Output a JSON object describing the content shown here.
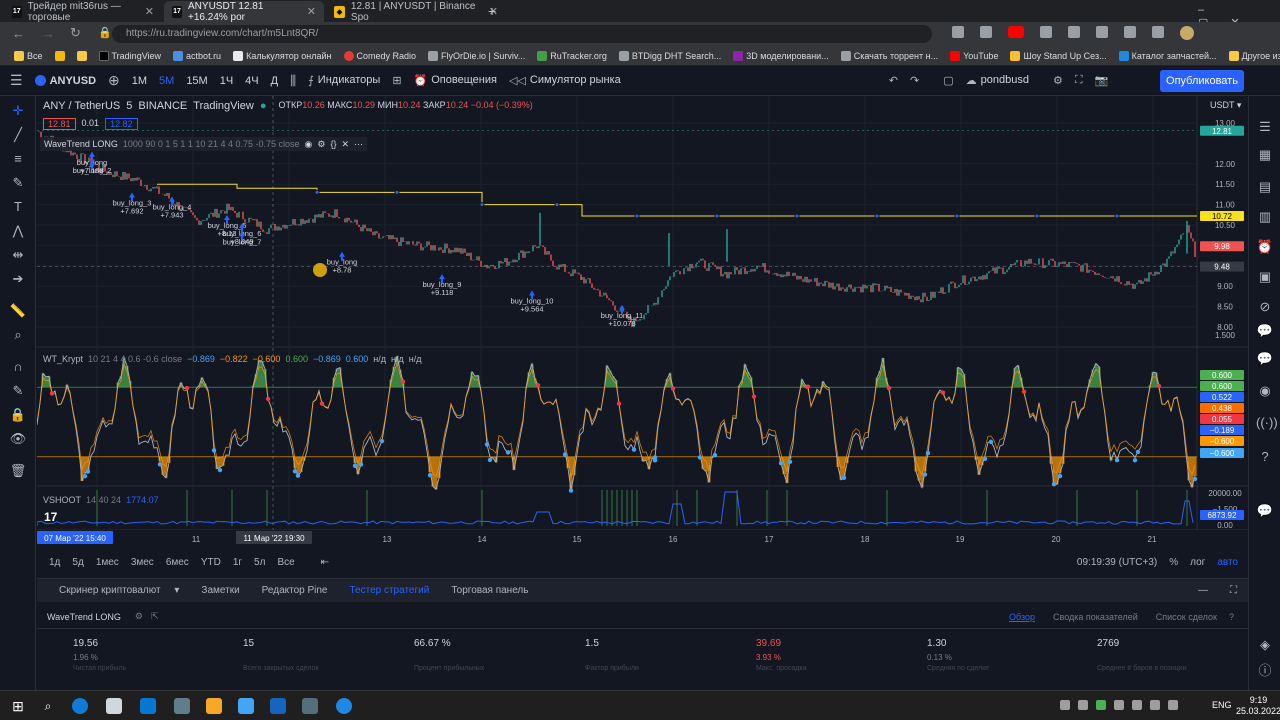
{
  "browser": {
    "tabs": [
      {
        "label": "Трейдер mit36rus — торговые"
      },
      {
        "label": "ANYUSDT 12.81 +16.24% por"
      },
      {
        "label": "12.81 | ANYUSDT | Binance Spo"
      }
    ],
    "url": "https://ru.tradingview.com/chart/m5Lnt8QR/",
    "bookmarks": [
      "Все",
      "TradingView",
      "actbot.ru",
      "Калькулятор онлайн",
      "Comedy Radio",
      "FlyOrDie.io | Surviv...",
      "RuTracker.org",
      "BTDigg DHT Search...",
      "3D моделировани...",
      "Скачать торрент н...",
      "YouTube",
      "Шоу Stand Up Сез...",
      "Каталог запчастей...",
      "Другое избранное"
    ]
  },
  "toolbar": {
    "symbol": "ANYUSD",
    "intervals": [
      "1М",
      "5М",
      "15М",
      "1Ч",
      "4Ч",
      "Д"
    ],
    "indicators": "Индикаторы",
    "alerts": "Оповещения",
    "replay": "Симулятор рынка",
    "layout": "pondbusd",
    "publish": "Опубликовать"
  },
  "legend": {
    "pair": "ANY / TetherUS",
    "interval": "5",
    "exchange": "BINANCE",
    "source": "TradingView",
    "open_label": "ОТКР",
    "open": "10.26",
    "high_label": "МАКС",
    "high": "10.29",
    "low_label": "МИН",
    "low": "10.24",
    "close_label": "ЗАКР",
    "close": "10.24",
    "change": "−0.04 (−0.39%)",
    "bid": "12.81",
    "spread": "0.01",
    "ask": "12.82",
    "strategy": "WaveTrend LONG",
    "strategy_params": "1000 90 0 1 5 1 1 10 21 4 4 0.75 -0.75 close",
    "currency": "USDT"
  },
  "wt_legend": {
    "name": "WT_Krypt",
    "params": "10 21 4 4 0.6 -0.6 close",
    "values": [
      "−0.869",
      "−0.822",
      "−0.600",
      "0.600",
      "−0.869",
      "0.600",
      "н/д",
      "н/д",
      "н/д"
    ]
  },
  "vshoot_legend": {
    "name": "VSHOOT",
    "params": "14 40 24",
    "value": "1774.07"
  },
  "price_axis": {
    "ticks": [
      "13.00",
      "12.00",
      "11.50",
      "11.00",
      "10.50",
      "10.00",
      "9.50",
      "9.00",
      "8.50",
      "8.00"
    ],
    "price_tags": [
      {
        "text": "12.81",
        "color": "#26a69a"
      },
      {
        "text": "10.72",
        "color": "#f7e11e"
      },
      {
        "text": "9.98",
        "color": "#ef5350"
      },
      {
        "text": "9.48",
        "color": "#363a45"
      }
    ]
  },
  "wt_axis": {
    "ticks": [
      "1.500",
      "−1.500"
    ],
    "tags": [
      {
        "text": "0.600",
        "color": "#4caf50"
      },
      {
        "text": "0.600",
        "color": "#4caf50"
      },
      {
        "text": "0.522",
        "color": "#2962ff"
      },
      {
        "text": "0.438",
        "color": "#ff6d00"
      },
      {
        "text": "0.055",
        "color": "#f23645"
      },
      {
        "text": "−0.189",
        "color": "#2962ff"
      },
      {
        "text": "−0.600",
        "color": "#ff9800"
      },
      {
        "text": "−0.600",
        "color": "#42a5f5"
      }
    ]
  },
  "vshoot_axis": {
    "ticks": [
      "20000.00",
      "0.00"
    ],
    "tag": "6873.92"
  },
  "time_axis": {
    "start_label": "07 Мар '22   15:40",
    "cursor_label": "11 Мар '22   19:30",
    "days": [
      "11",
      "13",
      "14",
      "15",
      "16",
      "17",
      "18",
      "19",
      "20",
      "21"
    ]
  },
  "signals": [
    {
      "name": "buy_long",
      "value": "+7.188"
    },
    {
      "name": "buy_long_2",
      "value": ""
    },
    {
      "name": "buy_long_3",
      "value": "+7.692"
    },
    {
      "name": "buy_long_4",
      "value": "+7.943"
    },
    {
      "name": "buy_long_5",
      "value": "+8.13"
    },
    {
      "name": "buy_long_6",
      "value": "+8.849"
    },
    {
      "name": "buy_long_7",
      "value": ""
    },
    {
      "name": "buy_long",
      "value": "+8.78"
    },
    {
      "name": "buy_long_9",
      "value": "+9.118"
    },
    {
      "name": "buy_long_10",
      "value": "+9.564"
    },
    {
      "name": "buy_long_11",
      "value": "+10.078"
    }
  ],
  "range_bar": {
    "ranges": [
      "1д",
      "5д",
      "1мес",
      "3мес",
      "6мес",
      "YTD",
      "1г",
      "5л",
      "Все"
    ],
    "clock": "09:19:39 (UTC+3)",
    "pct": "%",
    "log": "лог",
    "auto": "авто"
  },
  "bottom_panel": {
    "tabs": [
      "Скринер криптовалют",
      "Заметки",
      "Редактор Pine",
      "Тестер стратегий",
      "Торговая панель"
    ],
    "strategy": "WaveTrend LONG",
    "views": [
      "Обзор",
      "Сводка показателей",
      "Список сделок"
    ],
    "stats": [
      {
        "value": "19.56",
        "pct": "1.96 %",
        "label": "Чистая прибыль",
        "color": "#d1d4dc"
      },
      {
        "value": "15",
        "pct": "",
        "label": "Всего закрытых сделок",
        "color": "#d1d4dc"
      },
      {
        "value": "66.67 %",
        "pct": "",
        "label": "Процент прибыльных",
        "color": "#d1d4dc"
      },
      {
        "value": "1.5",
        "pct": "",
        "label": "Фактор прибыли",
        "color": "#d1d4dc"
      },
      {
        "value": "39.69",
        "pct": "3.93 %",
        "label": "Макс. просадка",
        "color": "#ef5350"
      },
      {
        "value": "1.30",
        "pct": "0.13 %",
        "label": "Средняя по сделке",
        "color": "#d1d4dc"
      },
      {
        "value": "2769",
        "pct": "",
        "label": "Среднее # баров в позиции",
        "color": "#d1d4dc"
      }
    ]
  },
  "taskbar": {
    "lang": "ENG",
    "time": "9:19",
    "date": "25.03.2022"
  }
}
